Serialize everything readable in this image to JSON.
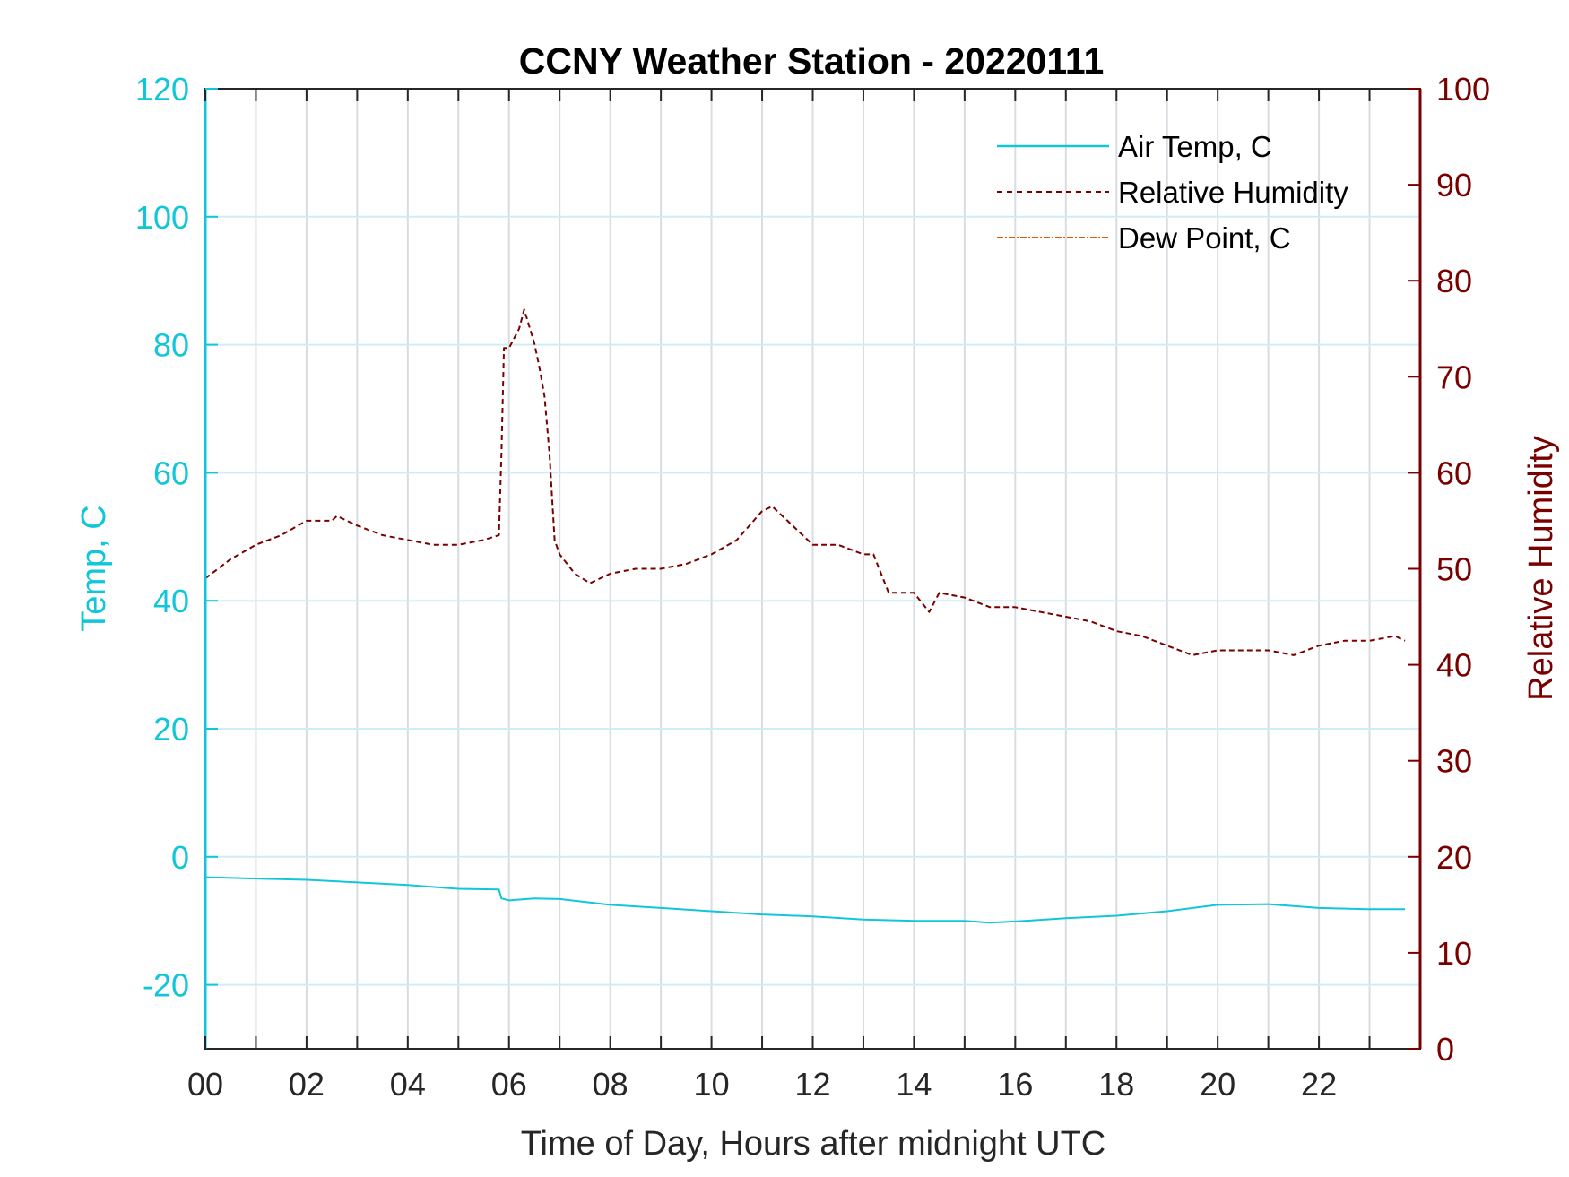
{
  "chart_data": {
    "type": "line",
    "title": "CCNY Weather Station - 20220111",
    "xlabel": "Time of Day, Hours after midnight UTC",
    "ylabel_left": "Temp, C",
    "ylabel_right": "Relative Humidity",
    "xlim": [
      0,
      24
    ],
    "ylim_left": [
      -30,
      120
    ],
    "ylim_right": [
      0,
      100
    ],
    "x_ticks": [
      0,
      2,
      4,
      6,
      8,
      10,
      12,
      14,
      16,
      18,
      20,
      22
    ],
    "x_tick_labels": [
      "00",
      "02",
      "04",
      "06",
      "08",
      "10",
      "12",
      "14",
      "16",
      "18",
      "20",
      "22"
    ],
    "y_left_ticks": [
      -20,
      0,
      20,
      40,
      60,
      80,
      100,
      120
    ],
    "y_left_tick_labels": [
      "-20",
      "0",
      "20",
      "40",
      "60",
      "80",
      "100",
      "120"
    ],
    "y_right_ticks": [
      0,
      10,
      20,
      30,
      40,
      50,
      60,
      70,
      80,
      90,
      100
    ],
    "y_right_tick_labels": [
      "0",
      "10",
      "20",
      "30",
      "40",
      "50",
      "60",
      "70",
      "80",
      "90",
      "100"
    ],
    "grid": true,
    "legend_position": "top-right",
    "colors": {
      "temp": "#12c6d9",
      "humidity": "#7a0000",
      "dewpoint": "#e05a00",
      "grid_vertical": "#d8dde2",
      "grid_horizontal": "#cdeef3"
    },
    "series": [
      {
        "name": "Air Temp, C",
        "axis": "left",
        "style": "solid",
        "x": [
          0,
          1,
          2,
          3,
          4,
          5,
          5.8,
          5.85,
          6,
          6.5,
          7,
          8,
          9,
          10,
          11,
          12,
          13,
          14,
          15,
          15.5,
          16,
          17,
          18,
          19,
          20,
          21,
          22,
          23,
          23.7
        ],
        "y": [
          -3.2,
          -3.4,
          -3.6,
          -4.0,
          -4.4,
          -5.0,
          -5.1,
          -6.5,
          -6.8,
          -6.5,
          -6.6,
          -7.5,
          -8.0,
          -8.5,
          -9.0,
          -9.3,
          -9.8,
          -10.0,
          -10.0,
          -10.3,
          -10.1,
          -9.6,
          -9.2,
          -8.5,
          -7.5,
          -7.4,
          -8.0,
          -8.2,
          -8.2
        ]
      },
      {
        "name": "Relative Humidity",
        "axis": "right",
        "style": "dashed",
        "x": [
          0,
          0.5,
          1,
          1.5,
          2,
          2.5,
          2.6,
          3,
          3.5,
          4,
          4.5,
          5,
          5.5,
          5.8,
          5.85,
          5.9,
          6.0,
          6.2,
          6.3,
          6.5,
          6.6,
          6.7,
          6.8,
          6.9,
          7.0,
          7.3,
          7.6,
          8,
          8.5,
          9,
          9.5,
          10,
          10.5,
          11,
          11.2,
          11.5,
          12,
          12.5,
          13,
          13.2,
          13.5,
          14,
          14.3,
          14.5,
          15,
          15.5,
          16,
          16.5,
          17,
          17.5,
          18,
          18.5,
          19,
          19.5,
          20,
          20.5,
          21,
          21.5,
          22,
          22.5,
          23,
          23.5,
          23.7
        ],
        "y": [
          49,
          51,
          52.5,
          53.5,
          55,
          55,
          55.5,
          54.5,
          53.5,
          53,
          52.5,
          52.5,
          53,
          53.5,
          62,
          73,
          73,
          75,
          77,
          73.5,
          71,
          68,
          62,
          53,
          51.5,
          49.5,
          48.5,
          49.5,
          50,
          50,
          50.5,
          51.5,
          53,
          56,
          56.5,
          55,
          52.5,
          52.5,
          51.5,
          51.5,
          47.5,
          47.5,
          45.5,
          47.5,
          47,
          46,
          46,
          45.5,
          45,
          44.5,
          43.5,
          43,
          42,
          41,
          41.5,
          41.5,
          41.5,
          41,
          42,
          42.5,
          42.5,
          43,
          42.5
        ]
      },
      {
        "name": "Dew Point, C",
        "axis": "left",
        "style": "dash-dot"
      }
    ]
  }
}
